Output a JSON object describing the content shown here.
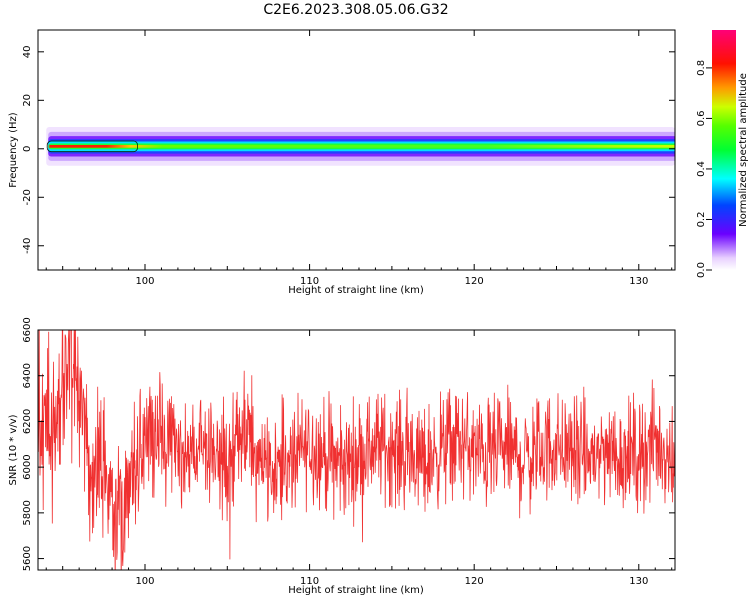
{
  "title": "C2E6.2023.308.05.06.G32",
  "chart_data": [
    {
      "type": "heatmap",
      "xlabel": "Height of straight line (km)",
      "ylabel": "Frequency (Hz)",
      "xlim": [
        93.5,
        132.2
      ],
      "ylim": [
        -50,
        49
      ],
      "xticks": [
        100,
        110,
        120,
        130
      ],
      "yticks": [
        -40,
        -20,
        0,
        20,
        40
      ],
      "band": {
        "x_start": 94.0,
        "x_end": 132.2,
        "center_freq": 1.0,
        "core_amplitude_early": 0.85,
        "core_amplitude_late": 0.4,
        "transition_x": 99.0,
        "halo_half_width_hz": 4
      },
      "colorbar": {
        "label": "Normalized spectral amplitude",
        "ticks": [
          0.0,
          0.2,
          0.4,
          0.6,
          0.8
        ],
        "range": [
          0,
          0.95
        ],
        "colormap": "gist_rainbow_r"
      },
      "grid": false
    },
    {
      "type": "line",
      "xlabel": "Height of straight line (km)",
      "ylabel": "SNR (10 * v/v)",
      "xlim": [
        93.5,
        132.2
      ],
      "ylim": [
        5550,
        6600
      ],
      "xticks": [
        100,
        110,
        120,
        130
      ],
      "yticks": [
        5600,
        5800,
        6000,
        6200,
        6400,
        6600
      ],
      "series": [
        {
          "color": "#f03030",
          "x_start": 93.5,
          "x_end": 132.2,
          "mean": 6080,
          "points": [
            [
              93.5,
              6150
            ],
            [
              94.0,
              6250
            ],
            [
              94.5,
              6080
            ],
            [
              95.0,
              6300
            ],
            [
              95.5,
              6450
            ],
            [
              96.0,
              6380
            ],
            [
              96.5,
              6000
            ],
            [
              97.0,
              5900
            ],
            [
              97.5,
              6050
            ],
            [
              98.0,
              5880
            ],
            [
              98.5,
              5750
            ],
            [
              99.0,
              5850
            ],
            [
              99.5,
              6000
            ],
            [
              100.0,
              6150
            ],
            [
              101.0,
              6120
            ],
            [
              102.0,
              6080
            ],
            [
              103.0,
              6050
            ],
            [
              104.0,
              6100
            ],
            [
              105.0,
              6000
            ],
            [
              106.0,
              6150
            ],
            [
              107.0,
              6050
            ],
            [
              108.0,
              6000
            ],
            [
              109.0,
              6020
            ],
            [
              110.0,
              6100
            ],
            [
              111.0,
              6050
            ],
            [
              112.0,
              6000
            ],
            [
              113.0,
              6060
            ],
            [
              114.0,
              6100
            ],
            [
              115.0,
              6080
            ],
            [
              116.0,
              6050
            ],
            [
              117.0,
              6020
            ],
            [
              118.0,
              6080
            ],
            [
              119.0,
              6120
            ],
            [
              120.0,
              6060
            ],
            [
              121.0,
              6050
            ],
            [
              122.0,
              6080
            ],
            [
              123.0,
              6030
            ],
            [
              124.0,
              6070
            ],
            [
              125.0,
              6100
            ],
            [
              126.0,
              6060
            ],
            [
              127.0,
              6040
            ],
            [
              128.0,
              6080
            ],
            [
              129.0,
              6050
            ],
            [
              130.0,
              6060
            ],
            [
              131.0,
              6100
            ],
            [
              132.2,
              6050
            ]
          ],
          "noise_amplitude": 180
        }
      ],
      "grid": false
    }
  ]
}
